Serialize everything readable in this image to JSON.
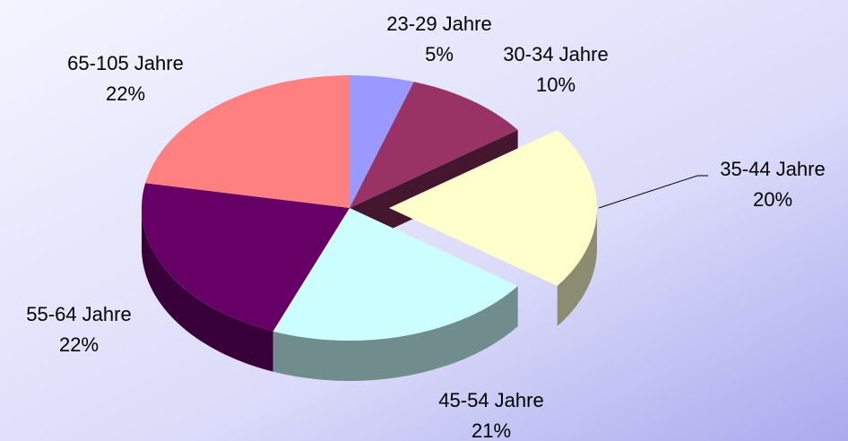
{
  "chart_data": {
    "type": "pie",
    "categories": [
      "23-29 Jahre",
      "30-34 Jahre",
      "35-44 Jahre",
      "45-54 Jahre",
      "55-64 Jahre",
      "65-105 Jahre"
    ],
    "values": [
      5,
      10,
      20,
      21,
      22,
      22
    ],
    "value_labels": [
      "5%",
      "10%",
      "20%",
      "21%",
      "22%",
      "22%"
    ],
    "colors": [
      "#9999ff",
      "#993366",
      "#ffffcc",
      "#ccffff",
      "#660066",
      "#ff8080"
    ],
    "explode": [
      false,
      false,
      true,
      false,
      false,
      false
    ]
  }
}
